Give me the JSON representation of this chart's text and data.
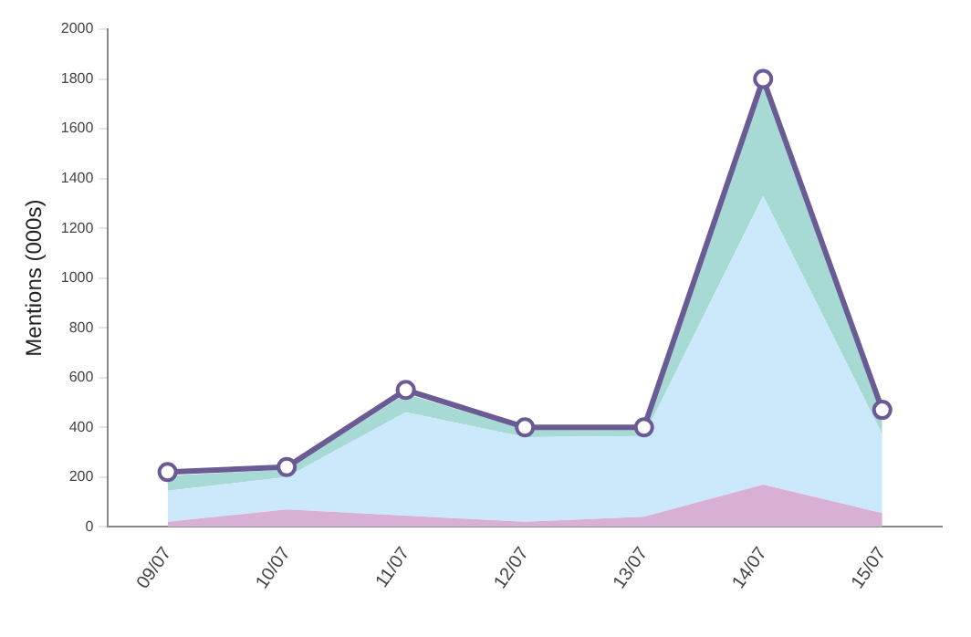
{
  "chart_data": {
    "type": "area",
    "ylabel": "Mentions (000s)",
    "categories": [
      "09/07",
      "10/07",
      "11/07",
      "12/07",
      "13/07",
      "14/07",
      "15/07"
    ],
    "stacked": true,
    "series": [
      {
        "color": "#d8b0d4",
        "values": [
          20,
          70,
          45,
          20,
          40,
          170,
          55
        ]
      },
      {
        "color": "#cce9fb",
        "values": [
          125,
          130,
          415,
          340,
          325,
          1160,
          315
        ]
      },
      {
        "color": "#a8dad5",
        "values": [
          60,
          30,
          75,
          30,
          25,
          450,
          80
        ]
      },
      {
        "type": "line",
        "color": "#6b5b95",
        "values": [
          220,
          240,
          550,
          400,
          400,
          1800,
          470
        ],
        "marker": "circle",
        "line_style": "solid"
      }
    ],
    "ylim": [
      0,
      2000
    ],
    "yticks": [
      0,
      200,
      400,
      600,
      800,
      1000,
      1200,
      1400,
      1600,
      1800,
      2000
    ],
    "grid": false,
    "legend": false
  }
}
